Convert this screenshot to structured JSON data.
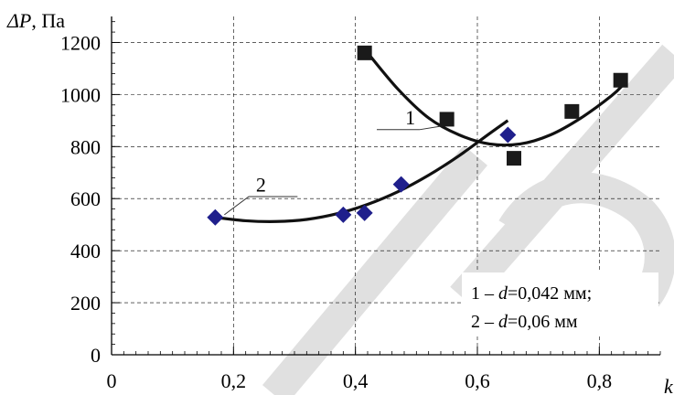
{
  "chart_data": {
    "type": "scatter",
    "title": "",
    "xlabel": "k",
    "ylabel_prefix": "ΔP",
    "ylabel_unit": ", Па",
    "xlim": [
      0,
      0.9
    ],
    "ylim": [
      0,
      1300
    ],
    "x_ticks": [
      0,
      0.2,
      0.4,
      0.6,
      0.8
    ],
    "x_tick_labels": [
      "0",
      "0,2",
      "0,4",
      "0,6",
      "0,8"
    ],
    "y_ticks": [
      0,
      200,
      400,
      600,
      800,
      1000,
      1200
    ],
    "y_tick_labels": [
      "0",
      "200",
      "400",
      "600",
      "800",
      "1000",
      "1200"
    ],
    "grid": true,
    "series": [
      {
        "name": "1",
        "marker": "square",
        "color": "#1a1a1a",
        "points": [
          [
            0.415,
            1160
          ],
          [
            0.55,
            905
          ],
          [
            0.66,
            755
          ],
          [
            0.755,
            935
          ],
          [
            0.835,
            1055
          ]
        ],
        "fit_curve": [
          [
            0.42,
            1160
          ],
          [
            0.47,
            1020
          ],
          [
            0.52,
            910
          ],
          [
            0.57,
            845
          ],
          [
            0.62,
            810
          ],
          [
            0.67,
            810
          ],
          [
            0.72,
            845
          ],
          [
            0.77,
            910
          ],
          [
            0.82,
            995
          ],
          [
            0.84,
            1040
          ]
        ]
      },
      {
        "name": "2",
        "marker": "diamond",
        "color": "#1f1f8c",
        "points": [
          [
            0.17,
            528
          ],
          [
            0.38,
            538
          ],
          [
            0.415,
            545
          ],
          [
            0.475,
            655
          ],
          [
            0.65,
            845
          ]
        ],
        "fit_curve": [
          [
            0.17,
            528
          ],
          [
            0.22,
            515
          ],
          [
            0.27,
            512
          ],
          [
            0.32,
            520
          ],
          [
            0.37,
            542
          ],
          [
            0.42,
            578
          ],
          [
            0.47,
            627
          ],
          [
            0.52,
            690
          ],
          [
            0.57,
            765
          ],
          [
            0.62,
            850
          ],
          [
            0.65,
            900
          ]
        ]
      }
    ],
    "legend": {
      "placement": "bottom-right",
      "line1": {
        "prefix": "1 – ",
        "var": "d",
        "suffix": "=0,042 мм;"
      },
      "line2": {
        "prefix": "2 – ",
        "var": "d",
        "suffix": "=0,06 мм"
      }
    },
    "annotations": [
      {
        "label": "1",
        "series": 0
      },
      {
        "label": "2",
        "series": 1
      }
    ]
  }
}
